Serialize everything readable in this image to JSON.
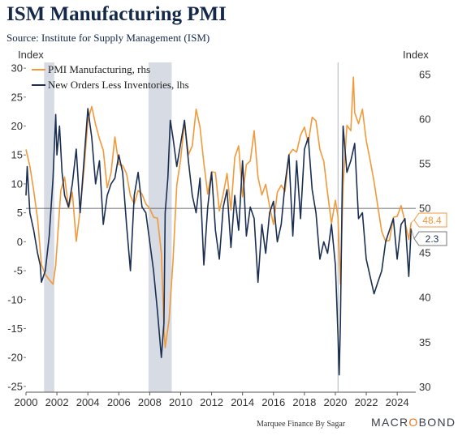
{
  "title": "ISM Manufacturing PMI",
  "subtitle": "Source: Institute for Supply Management (ISM)",
  "credit": "Marquee Finance By Sagar",
  "logo": {
    "pre": "MACR",
    "o": "O",
    "post": "BOND"
  },
  "colors": {
    "pmi": "#f2993a",
    "neworders": "#1b2f52",
    "recession": "#d6dbe4",
    "reference": "#888888"
  },
  "chart_data": {
    "type": "line",
    "axes": {
      "left": {
        "label": "Index",
        "min": -26,
        "max": 31,
        "ticks": [
          -25,
          -20,
          -15,
          -10,
          -5,
          0,
          5,
          10,
          15,
          20,
          25,
          30
        ]
      },
      "right": {
        "label": "Index",
        "min": 29.4,
        "max": 66.35,
        "ticks": [
          30,
          35,
          40,
          45,
          50,
          55,
          60,
          65
        ]
      },
      "x": {
        "min": 2000.0,
        "max": 2025.2,
        "ticks": [
          "2000",
          "2002",
          "2004",
          "2006",
          "2008",
          "2010",
          "2012",
          "2014",
          "2016",
          "2018",
          "2020",
          "2022",
          "2024"
        ]
      }
    },
    "grid": false,
    "legend_position": "top-left",
    "reference_line": {
      "axis": "right",
      "value": 50
    },
    "recessions": [
      [
        2001.17,
        2001.83
      ],
      [
        2007.92,
        2009.42
      ]
    ],
    "series": [
      {
        "name": "PMI Manufacturing, rhs",
        "axis": "right",
        "last_value": "48.4",
        "x": [
          2000.0,
          2000.25,
          2000.5,
          2000.75,
          2001.0,
          2001.25,
          2001.5,
          2001.75,
          2001.92,
          2002.25,
          2002.5,
          2002.75,
          2003.0,
          2003.25,
          2003.5,
          2003.75,
          2004.0,
          2004.25,
          2004.5,
          2004.75,
          2005.0,
          2005.25,
          2005.5,
          2005.75,
          2006.0,
          2006.25,
          2006.5,
          2006.75,
          2007.0,
          2007.25,
          2007.5,
          2007.75,
          2008.0,
          2008.25,
          2008.5,
          2008.75,
          2008.92,
          2009.0,
          2009.25,
          2009.5,
          2009.75,
          2010.0,
          2010.25,
          2010.5,
          2010.75,
          2011.0,
          2011.25,
          2011.5,
          2011.75,
          2012.0,
          2012.25,
          2012.5,
          2012.75,
          2013.0,
          2013.25,
          2013.5,
          2013.75,
          2014.0,
          2014.25,
          2014.5,
          2014.75,
          2015.0,
          2015.25,
          2015.5,
          2015.75,
          2016.0,
          2016.25,
          2016.5,
          2016.75,
          2017.0,
          2017.25,
          2017.5,
          2017.75,
          2018.0,
          2018.25,
          2018.5,
          2018.75,
          2019.0,
          2019.25,
          2019.5,
          2019.75,
          2020.0,
          2020.17,
          2020.33,
          2020.5,
          2020.75,
          2021.0,
          2021.17,
          2021.25,
          2021.5,
          2021.75,
          2022.0,
          2022.25,
          2022.5,
          2022.75,
          2023.0,
          2023.25,
          2023.5,
          2023.75,
          2024.0,
          2024.25,
          2024.5,
          2024.75,
          2024.9
        ],
        "values": [
          56.6,
          54.7,
          52.0,
          48.8,
          43.7,
          42.6,
          42.0,
          41.5,
          43.6,
          52.0,
          53.5,
          50.0,
          51.8,
          46.3,
          49.8,
          54.3,
          59.8,
          61.4,
          59.4,
          57.8,
          56.5,
          52.3,
          54.0,
          58.0,
          54.9,
          54.8,
          53.9,
          51.4,
          50.5,
          52.0,
          51.6,
          50.5,
          50.0,
          49.0,
          48.9,
          45.0,
          36.6,
          34.4,
          37.5,
          44.0,
          52.6,
          55.5,
          59.7,
          56.0,
          57.0,
          61.1,
          59.1,
          55.1,
          51.6,
          54.1,
          54.0,
          49.7,
          51.6,
          53.9,
          49.8,
          55.7,
          57.0,
          51.3,
          54.9,
          55.3,
          58.7,
          53.5,
          51.5,
          52.7,
          50.2,
          48.2,
          51.8,
          52.6,
          51.9,
          56.0,
          56.6,
          56.3,
          58.2,
          59.1,
          57.3,
          60.2,
          59.8,
          56.6,
          55.3,
          51.7,
          48.3,
          50.9,
          49.1,
          41.5,
          52.6,
          59.3,
          58.7,
          64.7,
          60.7,
          59.5,
          61.1,
          57.6,
          55.4,
          53.0,
          50.2,
          47.4,
          46.3,
          46.4,
          49.0,
          49.1,
          50.3,
          48.5,
          46.5,
          48.4
        ]
      },
      {
        "name": "New Orders Less Inventories, lhs",
        "axis": "left",
        "last_value": "2.3",
        "x": [
          2000.0,
          2000.08,
          2000.25,
          2000.5,
          2000.75,
          2000.92,
          2001.0,
          2001.25,
          2001.5,
          2001.75,
          2001.92,
          2002.0,
          2002.17,
          2002.33,
          2002.5,
          2002.75,
          2003.0,
          2003.25,
          2003.5,
          2003.75,
          2004.0,
          2004.25,
          2004.5,
          2004.75,
          2005.0,
          2005.25,
          2005.5,
          2005.75,
          2006.0,
          2006.25,
          2006.5,
          2006.75,
          2007.0,
          2007.25,
          2007.5,
          2007.75,
          2008.0,
          2008.25,
          2008.5,
          2008.75,
          2008.92,
          2009.0,
          2009.17,
          2009.33,
          2009.5,
          2009.75,
          2010.0,
          2010.25,
          2010.5,
          2010.75,
          2011.0,
          2011.25,
          2011.5,
          2011.75,
          2012.0,
          2012.25,
          2012.5,
          2012.75,
          2013.0,
          2013.25,
          2013.5,
          2013.75,
          2014.0,
          2014.25,
          2014.5,
          2014.75,
          2015.0,
          2015.25,
          2015.5,
          2015.75,
          2016.0,
          2016.25,
          2016.5,
          2016.75,
          2017.0,
          2017.25,
          2017.5,
          2017.75,
          2018.0,
          2018.25,
          2018.5,
          2018.75,
          2019.0,
          2019.25,
          2019.5,
          2019.75,
          2020.0,
          2020.17,
          2020.25,
          2020.33,
          2020.42,
          2020.5,
          2020.75,
          2021.0,
          2021.25,
          2021.5,
          2021.75,
          2022.0,
          2022.25,
          2022.5,
          2022.75,
          2023.0,
          2023.25,
          2023.5,
          2023.75,
          2024.0,
          2024.25,
          2024.5,
          2024.75,
          2024.9
        ],
        "values": [
          8,
          13,
          5,
          2,
          -2,
          -4,
          -7,
          -5,
          1,
          11,
          22,
          15,
          20,
          12,
          8,
          6,
          10,
          16,
          5,
          14,
          23,
          18,
          10,
          14,
          3,
          8,
          10,
          11,
          15,
          12,
          3,
          -5,
          8,
          12,
          6,
          5,
          0,
          -5,
          -12,
          -20,
          -14,
          5,
          11,
          21,
          18,
          13,
          17,
          21,
          14,
          8,
          5,
          11,
          -4,
          6,
          12,
          2,
          -3,
          6,
          9,
          -1,
          8,
          2,
          14,
          1,
          6,
          4,
          -7,
          3,
          -2,
          5,
          7,
          0,
          3,
          10,
          15,
          1,
          14,
          4,
          16,
          18,
          9,
          5,
          -3,
          0,
          -2,
          3,
          -4,
          -16,
          -23,
          -14,
          5,
          20,
          12,
          14,
          17,
          4,
          5,
          -3,
          -6,
          -9,
          -7,
          -5,
          0,
          2,
          4,
          -3,
          3,
          4,
          -6,
          2.3
        ]
      }
    ]
  }
}
